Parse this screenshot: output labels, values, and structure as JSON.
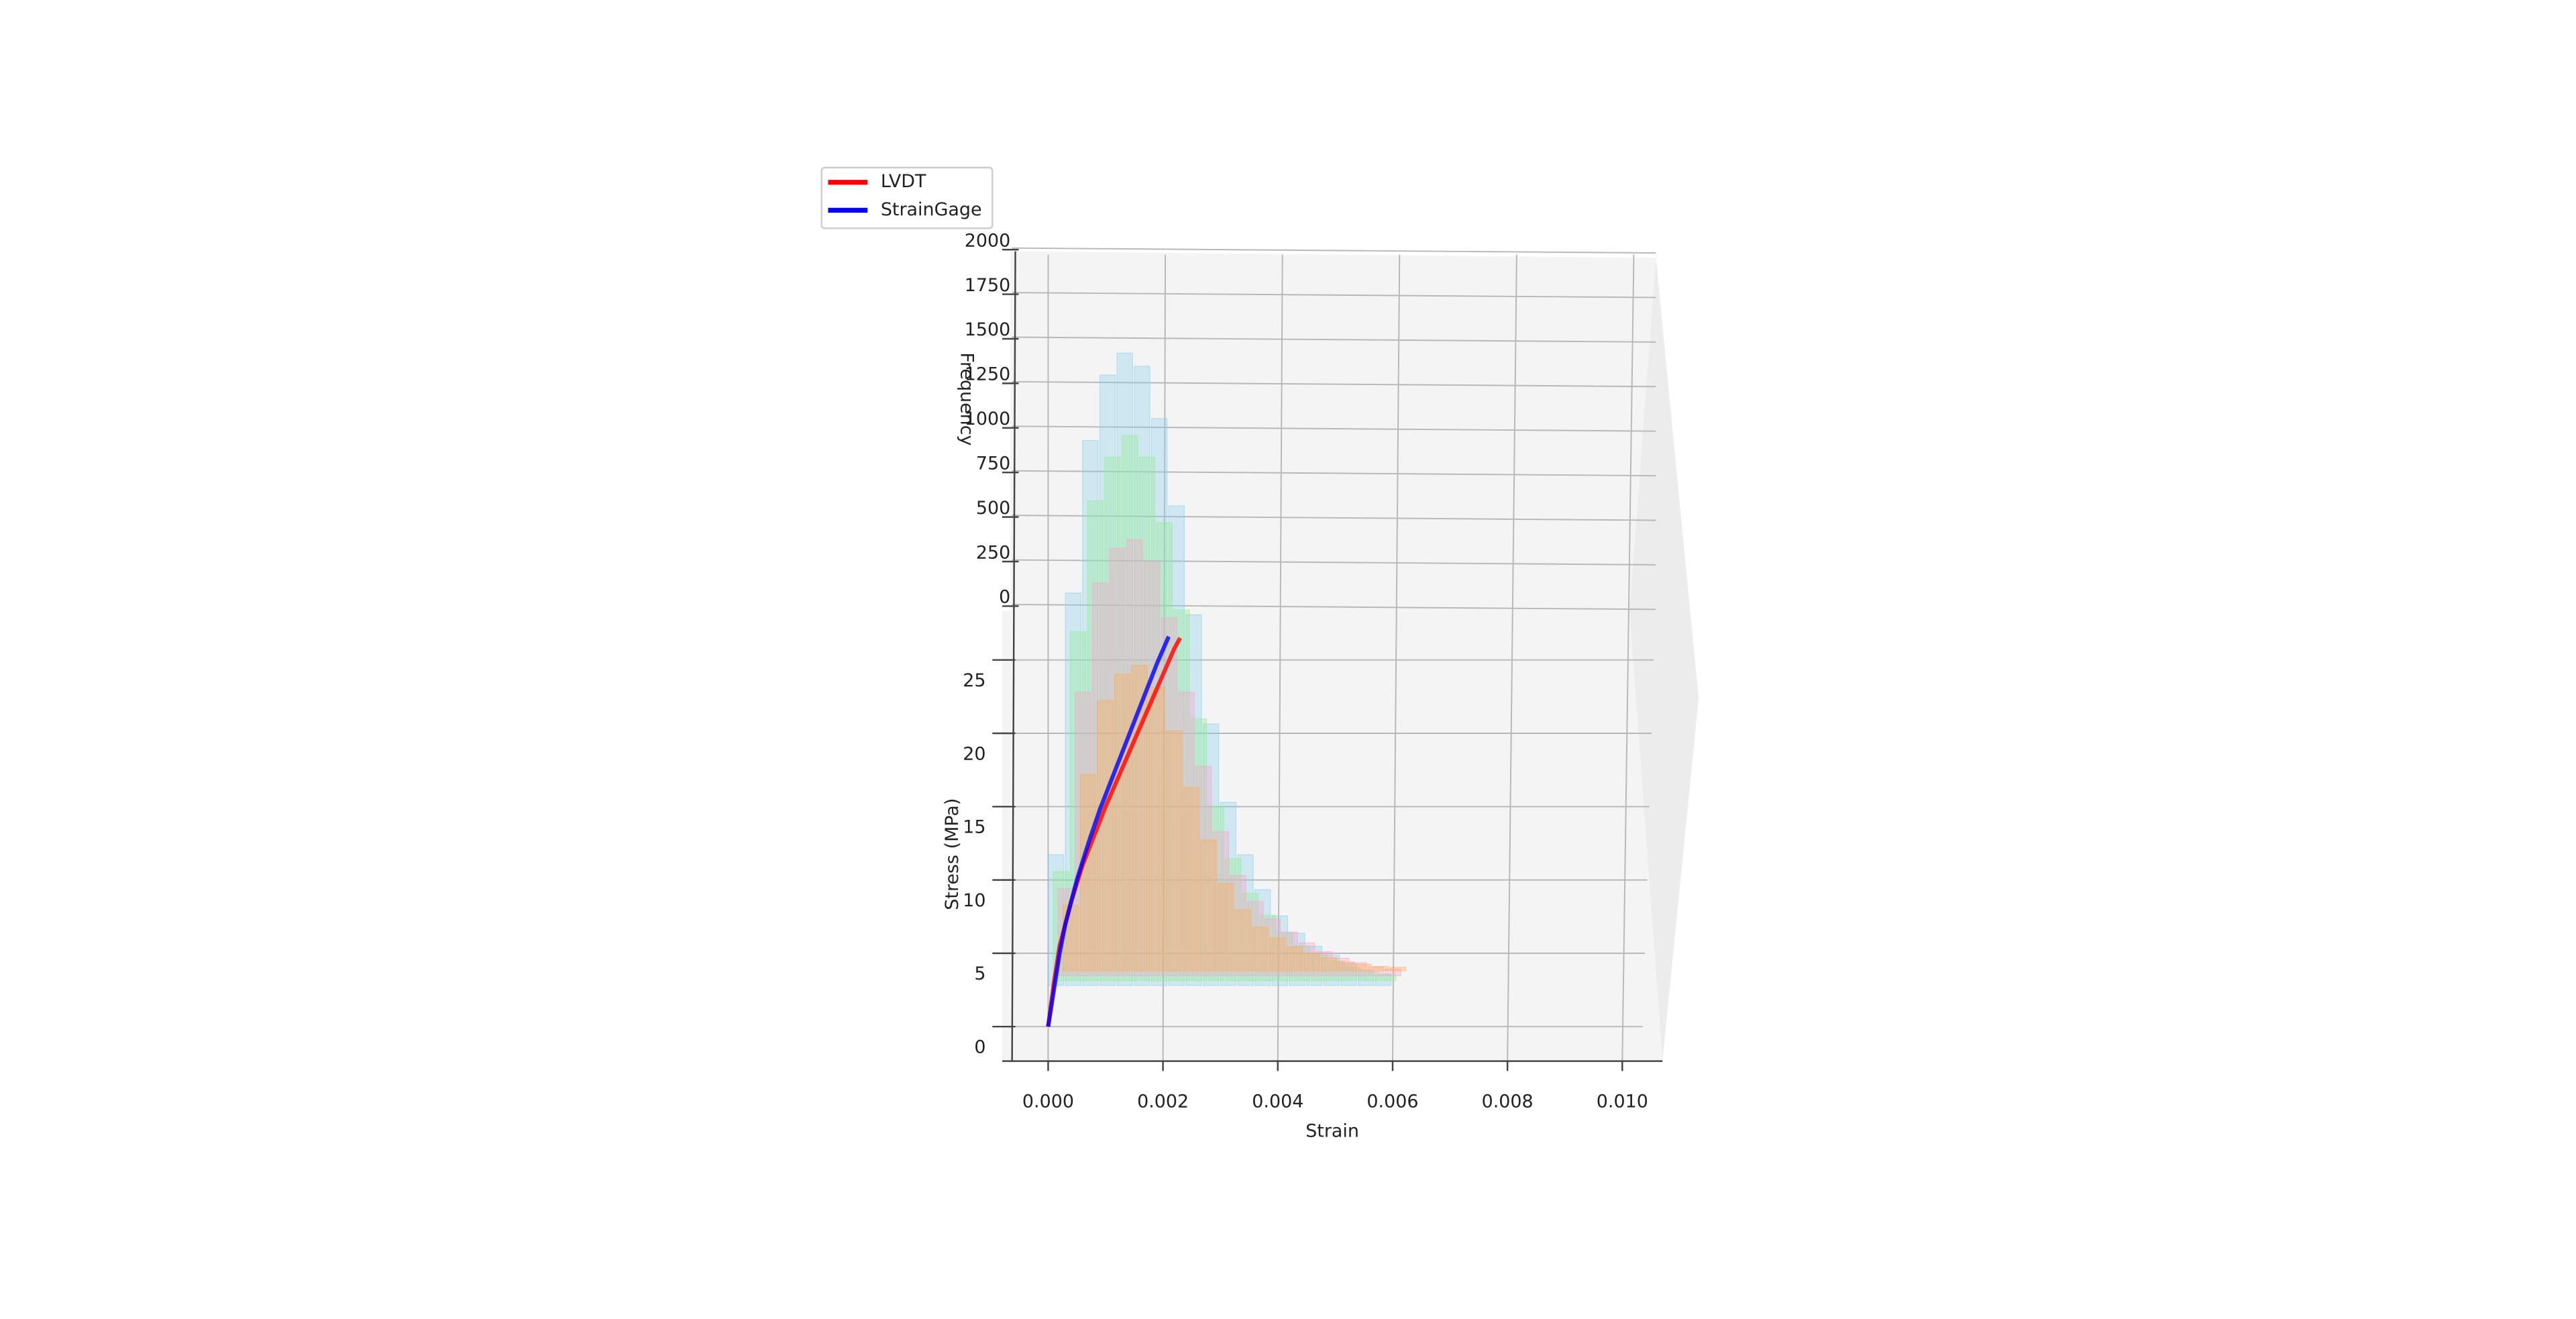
{
  "chart_data": [
    {
      "type": "line",
      "xlabel": "Strain",
      "ylabel": "Stress (MPa)",
      "xlim": [
        -0.0008,
        0.0107
      ],
      "ylim": [
        0,
        28
      ],
      "xticks": [
        {
          "value": 0,
          "label": "0.000"
        },
        {
          "value": 0.002,
          "label": "0.002"
        },
        {
          "value": 0.004,
          "label": "0.004"
        },
        {
          "value": 0.006,
          "label": "0.006"
        },
        {
          "value": 0.008,
          "label": "0.008"
        },
        {
          "value": 0.01,
          "label": "0.010"
        }
      ],
      "yticks": [
        0,
        5,
        10,
        15,
        20,
        25
      ],
      "grid": true,
      "legend": "upper-left",
      "series": [
        {
          "name": "LVDT",
          "color": "#ff0000",
          "x": [
            0,
            0.0001,
            0.0002,
            0.0004,
            0.0006,
            0.0008,
            0.001,
            0.0012,
            0.0014,
            0.0016,
            0.0018,
            0.002,
            0.0022,
            0.0023
          ],
          "values": [
            0,
            3,
            5.5,
            8.5,
            11,
            13,
            15,
            16.8,
            18.6,
            20.4,
            22.2,
            24,
            25.8,
            26.5
          ]
        },
        {
          "name": "StrainGage",
          "color": "#0000ff",
          "x": [
            0,
            0.0001,
            0.0002,
            0.0003,
            0.0005,
            0.0007,
            0.0009,
            0.0011,
            0.0013,
            0.0015,
            0.0017,
            0.0019,
            0.0021
          ],
          "values": [
            0,
            2.5,
            5,
            7,
            10,
            12.5,
            14.8,
            16.8,
            18.8,
            20.8,
            22.8,
            24.8,
            26.6
          ]
        }
      ]
    },
    {
      "type": "histogram",
      "ylabel": "Frequency",
      "ylim": [
        0,
        2000
      ],
      "yticks": [
        0,
        250,
        500,
        750,
        1000,
        1250,
        1500,
        1750,
        2000
      ],
      "bins": [
        0,
        0.0003,
        0.0006,
        0.0009,
        0.0012,
        0.0015,
        0.0018,
        0.0021,
        0.0024,
        0.0027,
        0.003,
        0.0033,
        0.0036,
        0.0039,
        0.0042,
        0.0045,
        0.0048,
        0.0051,
        0.0054,
        0.0057,
        0.006
      ],
      "series": [
        {
          "color": "#87ceeb",
          "values": [
            300,
            900,
            1250,
            1400,
            1450,
            1420,
            1300,
            1100,
            850,
            600,
            420,
            300,
            220,
            160,
            120,
            90,
            70,
            50,
            35,
            25
          ]
        },
        {
          "color": "#90ee90",
          "values": [
            250,
            800,
            1100,
            1200,
            1250,
            1200,
            1050,
            850,
            600,
            400,
            280,
            200,
            150,
            110,
            80,
            60,
            45,
            30,
            20,
            15
          ]
        },
        {
          "color": "#ff9ec8",
          "values": [
            200,
            650,
            900,
            980,
            1000,
            950,
            820,
            650,
            480,
            330,
            230,
            170,
            130,
            100,
            75,
            55,
            40,
            30,
            20,
            15
          ]
        },
        {
          "color": "#ffa94d",
          "values": [
            150,
            450,
            620,
            680,
            700,
            650,
            550,
            420,
            300,
            200,
            140,
            100,
            75,
            55,
            40,
            30,
            20,
            15,
            10,
            8
          ]
        }
      ]
    }
  ]
}
